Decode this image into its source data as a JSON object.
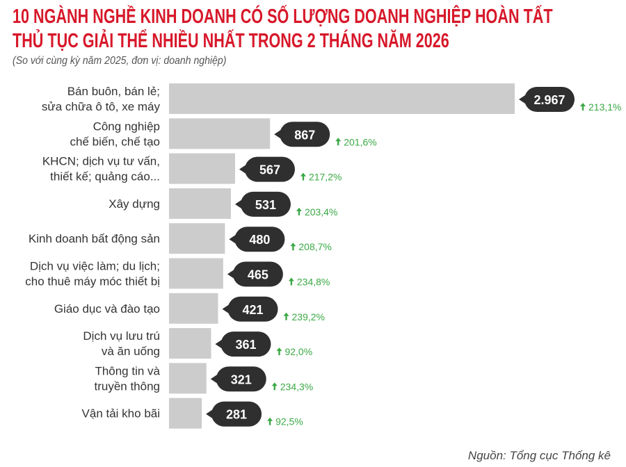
{
  "title_lines": [
    "10 NGÀNH NGHỀ KINH DOANH CÓ SỐ LƯỢNG DOANH NGHIỆP HOÀN TẤT",
    "THỦ TỤC GIẢI THỂ NHIỀU NHẤT TRONG 2 THÁNG NĂM 2026"
  ],
  "subtitle": "(So với cùng kỳ năm 2025, đơn vị: doanh nghiệp)",
  "source": "Nguồn: Tổng cục Thống kê",
  "colors": {
    "title": "#d7182a",
    "bar": "#cccccc",
    "pill": "#2f2f2f",
    "growth": "#3aa845"
  },
  "chart_data": {
    "type": "bar",
    "orientation": "horizontal",
    "title": "10 NGÀNH NGHỀ KINH DOANH CÓ SỐ LƯỢNG DOANH NGHIỆP HOÀN TẤT THỦ TỤC GIẢI THỂ NHIỀU NHẤT TRONG 2 THÁNG NĂM 2026",
    "categories": [
      [
        "Bán buôn, bán lẻ;",
        "sửa chữa ô tô, xe máy"
      ],
      [
        "Công nghiệp",
        "chế biến, chế tạo"
      ],
      [
        "KHCN; dịch vụ tư vấn,",
        "thiết kế; quảng cáo..."
      ],
      [
        "Xây dựng"
      ],
      [
        "Kinh doanh bất động sản"
      ],
      [
        "Dịch vụ việc làm; du lịch;",
        "cho thuê máy móc thiết bị"
      ],
      [
        "Giáo dục và đào tạo"
      ],
      [
        "Dịch vụ lưu trú",
        "và ăn uống"
      ],
      [
        "Thông tin và",
        "truyền thông"
      ],
      [
        "Vận tải kho bãi"
      ]
    ],
    "values": [
      2967,
      867,
      567,
      531,
      480,
      465,
      421,
      361,
      321,
      281
    ],
    "value_labels": [
      "2.967",
      "867",
      "567",
      "531",
      "480",
      "465",
      "421",
      "361",
      "321",
      "281"
    ],
    "growth_labels": [
      "213,1%",
      "201,6%",
      "217,2%",
      "203,4%",
      "208,7%",
      "234,8%",
      "239,2%",
      "92,0%",
      "234,3%",
      "92,5%"
    ],
    "growth_icon": "arrow-up-icon",
    "grid": false
  }
}
